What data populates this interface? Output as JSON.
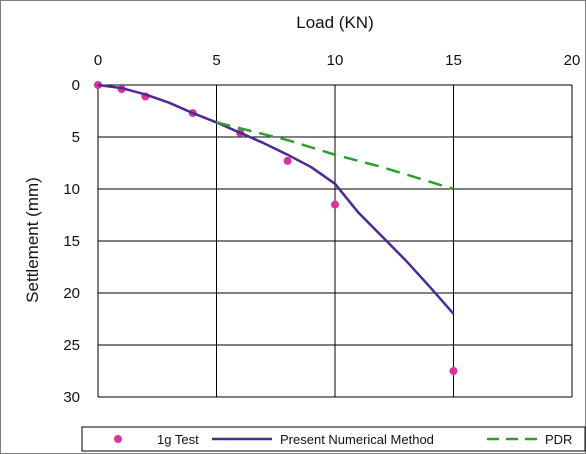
{
  "chart_data": {
    "type": "line",
    "xlabel": "Load (KN)",
    "ylabel": "Settlement (mm)",
    "xlim": [
      0,
      20
    ],
    "ylim": [
      0,
      30
    ],
    "x_axis_position": "top",
    "y_axis_inverted": true,
    "x_ticks": [
      "0",
      "5",
      "10",
      "15",
      "20"
    ],
    "y_ticks": [
      "0",
      "5",
      "10",
      "15",
      "20",
      "25",
      "30"
    ],
    "grid": "horizontal and vertical",
    "legend_placement": "bottom",
    "series": [
      {
        "name": "1g Test",
        "style": "markers",
        "color": "#e0309a",
        "points": [
          [
            0,
            0
          ],
          [
            1,
            0.4
          ],
          [
            2,
            1.1
          ],
          [
            4,
            2.7
          ],
          [
            6,
            4.6
          ],
          [
            8,
            7.3
          ],
          [
            10,
            11.5
          ],
          [
            15,
            27.5
          ]
        ]
      },
      {
        "name": "Present Numerical Method",
        "style": "solid",
        "color": "#4a2a96",
        "points": [
          [
            0,
            0
          ],
          [
            1,
            0.3
          ],
          [
            2,
            0.9
          ],
          [
            3,
            1.7
          ],
          [
            4,
            2.7
          ],
          [
            5,
            3.6
          ],
          [
            6,
            4.6
          ],
          [
            7,
            5.6
          ],
          [
            8,
            6.7
          ],
          [
            9,
            7.9
          ],
          [
            10,
            9.5
          ],
          [
            11,
            12.3
          ],
          [
            12,
            14.6
          ],
          [
            13,
            16.9
          ],
          [
            14,
            19.4
          ],
          [
            15,
            22.0
          ]
        ]
      },
      {
        "name": "PDR",
        "style": "dashed",
        "color": "#2ca02c",
        "points": [
          [
            5,
            3.6
          ],
          [
            8,
            5.3
          ],
          [
            10,
            6.7
          ],
          [
            12,
            7.9
          ],
          [
            15,
            10.0
          ]
        ]
      }
    ]
  }
}
